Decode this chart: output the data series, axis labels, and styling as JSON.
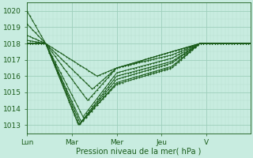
{
  "xlabel": "Pression niveau de la mer( hPa )",
  "ylim": [
    1012.5,
    1020.5
  ],
  "yticks": [
    1013,
    1014,
    1015,
    1016,
    1017,
    1018,
    1019,
    1020
  ],
  "xtick_labels": [
    "Lun",
    "Mar",
    "Mer",
    "Jeu",
    "V"
  ],
  "xtick_positions": [
    0,
    48,
    96,
    144,
    192
  ],
  "xlim": [
    0,
    239
  ],
  "background_color": "#c8ece0",
  "grid_major_color": "#9ecfbb",
  "grid_minor_color": "#b8dfd0",
  "line_color": "#1a5c1a",
  "line_width": 0.7,
  "marker_size": 2.0,
  "marker_every": 3
}
